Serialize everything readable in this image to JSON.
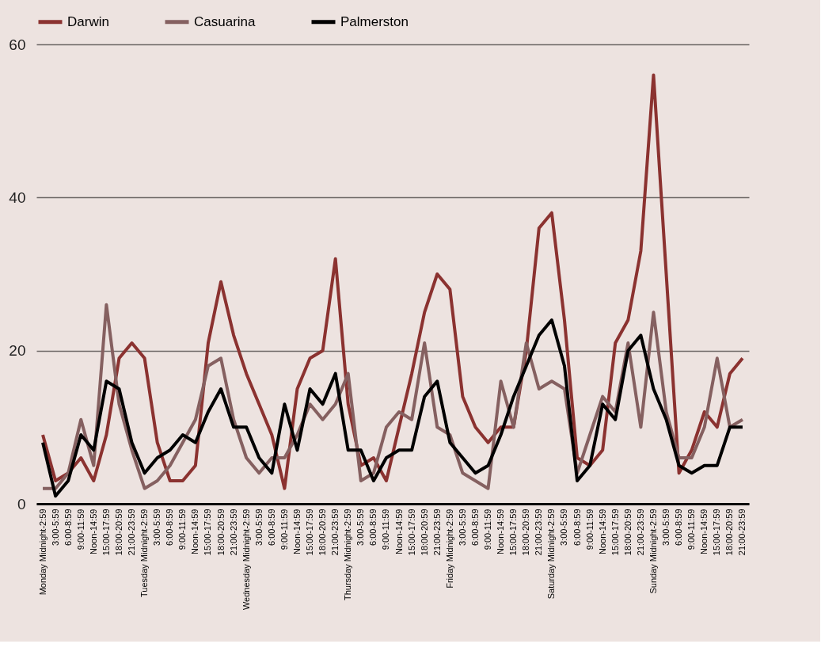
{
  "chart_data": {
    "type": "line",
    "categories": [
      "Monday Midnight-2:59",
      "3:00-5:59",
      "6:00-8:59",
      "9:00-11:59",
      "Noon-14:59",
      "15:00-17:59",
      "18:00-20:59",
      "21:00-23:59",
      "Tuesday Midnight-2:59",
      "3:00-5:59",
      "6:00-8:59",
      "9:00-11:59",
      "Noon-14:59",
      "15:00-17:59",
      "18:00-20:59",
      "21:00-23:59",
      "Wednesday Midnight-2:59",
      "3:00-5:59",
      "6:00-8:59",
      "9:00-11:59",
      "Noon-14:59",
      "15:00-17:59",
      "18:00-20:59",
      "21:00-23:59",
      "Thursday Midnight-2:59",
      "3:00-5:59",
      "6:00-8:59",
      "9:00-11:59",
      "Noon-14:59",
      "15:00-17:59",
      "18:00-20:59",
      "21:00-23:59",
      "Friday Midnight-2:59",
      "3:00-5:59",
      "6:00-8:59",
      "9:00-11:59",
      "Noon-14:59",
      "15:00-17:59",
      "18:00-20:59",
      "21:00-23:59",
      "Saturday Midnight-2:59",
      "3:00-5:59",
      "6:00-8:59",
      "9:00-11:59",
      "Noon-14:59",
      "15:00-17:59",
      "18:00-20:59",
      "21:00-23:59",
      "Sunday Midnight-2:59",
      "3:00-5:59",
      "6:00-8:59",
      "9:00-11:59",
      "Noon-14:59",
      "15:00-17:59",
      "18:00-20:59",
      "21:00-23:59"
    ],
    "series": [
      {
        "name": "Darwin",
        "color": "#8b3230",
        "values": [
          9,
          3,
          4,
          6,
          3,
          9,
          19,
          21,
          19,
          8,
          3,
          3,
          5,
          21,
          29,
          22,
          17,
          13,
          9,
          2,
          15,
          19,
          20,
          32,
          13,
          5,
          6,
          3,
          10,
          17,
          25,
          30,
          28,
          14,
          10,
          8,
          10,
          10,
          20,
          36,
          38,
          24,
          6,
          5,
          7,
          21,
          24,
          33,
          56,
          30,
          4,
          7,
          12,
          10,
          17,
          19
        ]
      },
      {
        "name": "Casuarina",
        "color": "#856060",
        "values": [
          2,
          2,
          4,
          11,
          5,
          26,
          13,
          7,
          2,
          3,
          5,
          8,
          11,
          18,
          19,
          11,
          6,
          4,
          6,
          6,
          9,
          13,
          11,
          13,
          17,
          3,
          4,
          10,
          12,
          11,
          21,
          10,
          9,
          4,
          3,
          2,
          16,
          10,
          21,
          15,
          16,
          15,
          4,
          9,
          14,
          12,
          21,
          10,
          25,
          12,
          6,
          6,
          10,
          19,
          10,
          11
        ]
      },
      {
        "name": "Palmerston",
        "color": "#000000",
        "values": [
          8,
          1,
          3,
          9,
          7,
          16,
          15,
          8,
          4,
          6,
          7,
          9,
          8,
          12,
          15,
          10,
          10,
          6,
          4,
          13,
          7,
          15,
          13,
          17,
          7,
          7,
          3,
          6,
          7,
          7,
          14,
          16,
          8,
          6,
          4,
          5,
          9,
          14,
          18,
          22,
          24,
          18,
          3,
          5,
          13,
          11,
          20,
          22,
          15,
          11,
          5,
          4,
          5,
          5,
          10,
          10
        ]
      }
    ],
    "ylim": [
      0,
      60
    ],
    "yticks": [
      0,
      20,
      40,
      60
    ],
    "grid": "y",
    "legend": "top",
    "marker": "none",
    "line_style": "solid"
  }
}
